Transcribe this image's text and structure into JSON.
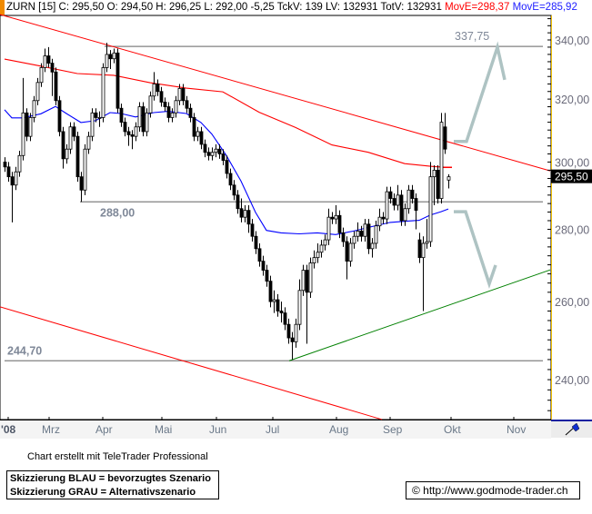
{
  "header": {
    "symbol_info": "ZURN [15] C: 295,50 O: 294,50 H: 296,25 L: 292,00 -5,25 TckV: 139 LV: 132931 TotV: 132931",
    "ma1_label": "MovE=298,37",
    "ma2_label": "MovE=285,92"
  },
  "colors": {
    "ma1": "#ff0000",
    "ma2": "#0000ff",
    "trend_red": "#ff0000",
    "trend_green": "#008000",
    "levels": "#808080",
    "scenario": "#aec3c3",
    "header_marker": "#f08a00"
  },
  "chart_data": {
    "type": "candlestick",
    "scale": "log",
    "ylim": [
      230.4,
      348.3
    ],
    "y_ticks": [
      "340,00",
      "320,00",
      "300,00",
      "280,00",
      "260,00",
      "240,00"
    ],
    "y_tick_values": [
      340,
      320,
      300,
      280,
      260,
      240
    ],
    "x_tick_labels": [
      "'08",
      "Mrz",
      "Apr",
      "Mai",
      "Jun",
      "Jul",
      "Aug",
      "Sep",
      "Okt",
      "Nov"
    ],
    "last_price_label": "295,50",
    "last_price": 295.5,
    "candles": [
      [
        300,
        301.5,
        297,
        298.5
      ],
      [
        298.5,
        300,
        294,
        295.5
      ],
      [
        295.5,
        297,
        282,
        293
      ],
      [
        293,
        298.5,
        291.5,
        297
      ],
      [
        297,
        303.5,
        295.5,
        302
      ],
      [
        302,
        327,
        300.5,
        315.5
      ],
      [
        315.5,
        317,
        306.5,
        308
      ],
      [
        308,
        315.5,
        306.5,
        314
      ],
      [
        314,
        321,
        312.5,
        319.5
      ],
      [
        319.5,
        327,
        318,
        325.5
      ],
      [
        325.5,
        332,
        324,
        330.5
      ],
      [
        330.5,
        337,
        329,
        334.5
      ],
      [
        334.5,
        337.5,
        330.5,
        332
      ],
      [
        332,
        333.5,
        321,
        329
      ],
      [
        329,
        330.5,
        318,
        319.5
      ],
      [
        319.5,
        321,
        308,
        309.5
      ],
      [
        309.5,
        311,
        298,
        301
      ],
      [
        301,
        305.5,
        299.5,
        304
      ],
      [
        304,
        312.5,
        302.5,
        311
      ],
      [
        311,
        312.5,
        306.5,
        308
      ],
      [
        308,
        309.5,
        294,
        295.5
      ],
      [
        295.5,
        297,
        288,
        291.5
      ],
      [
        291.5,
        305.5,
        290,
        304
      ],
      [
        304,
        309.5,
        302.5,
        308
      ],
      [
        308,
        317,
        306.5,
        315.5
      ],
      [
        315.5,
        317,
        312.5,
        314
      ],
      [
        314,
        316,
        311,
        314
      ],
      [
        314,
        332,
        312.5,
        330.5
      ],
      [
        330.5,
        339,
        329,
        335
      ],
      [
        335,
        336.5,
        330,
        333.5
      ],
      [
        333.5,
        337,
        332,
        335.5
      ],
      [
        335.5,
        337,
        315.5,
        317
      ],
      [
        317,
        318.5,
        311,
        312.5
      ],
      [
        312.5,
        314,
        308,
        309.5
      ],
      [
        309.5,
        311,
        305,
        308.5
      ],
      [
        308.5,
        310,
        304,
        308
      ],
      [
        308,
        312.5,
        306.5,
        311
      ],
      [
        311,
        319,
        309.5,
        317.5
      ],
      [
        317.5,
        319,
        308,
        309.5
      ],
      [
        309.5,
        317,
        308,
        315.5
      ],
      [
        315.5,
        322.5,
        314,
        321
      ],
      [
        321,
        329,
        319.5,
        325
      ],
      [
        325,
        326.5,
        321,
        322.5
      ],
      [
        322.5,
        324,
        317.5,
        319
      ],
      [
        319,
        320.5,
        316,
        317.5
      ],
      [
        317.5,
        319,
        312.5,
        314
      ],
      [
        314,
        317,
        312.5,
        315.5
      ],
      [
        315.5,
        321,
        314,
        319.5
      ],
      [
        319.5,
        325,
        318,
        323.5
      ],
      [
        323.5,
        325,
        318,
        319.5
      ],
      [
        319.5,
        321,
        315.5,
        317
      ],
      [
        317,
        318.5,
        312.5,
        314
      ],
      [
        314,
        315.5,
        306.5,
        308
      ],
      [
        308,
        311,
        306.5,
        309.5
      ],
      [
        309.5,
        311,
        304,
        305.5
      ],
      [
        305.5,
        307,
        301.5,
        303
      ],
      [
        303,
        304.5,
        300.5,
        302
      ],
      [
        302,
        304.5,
        300.5,
        303
      ],
      [
        303,
        305.5,
        301.5,
        304
      ],
      [
        304,
        305.5,
        301,
        302.5
      ],
      [
        302.5,
        304,
        299,
        300.5
      ],
      [
        300.5,
        302,
        295,
        296.5
      ],
      [
        296.5,
        298,
        291.5,
        293
      ],
      [
        293,
        294.5,
        288.5,
        290
      ],
      [
        290,
        291.5,
        284.5,
        286
      ],
      [
        286,
        289,
        282,
        283.5
      ],
      [
        283.5,
        287,
        282,
        285.5
      ],
      [
        285.5,
        287,
        279,
        281.5
      ],
      [
        281.5,
        283,
        276.5,
        278
      ],
      [
        278,
        279.5,
        273,
        274.5
      ],
      [
        274.5,
        276,
        269.5,
        271
      ],
      [
        271,
        272.5,
        267,
        268.5
      ],
      [
        268.5,
        270,
        264,
        265.5
      ],
      [
        265.5,
        267,
        258.5,
        260
      ],
      [
        260,
        263,
        257,
        260.5
      ],
      [
        260.5,
        262,
        256,
        257.5
      ],
      [
        257.5,
        260,
        254.5,
        257
      ],
      [
        257,
        258.5,
        252.5,
        254
      ],
      [
        254,
        255.5,
        249,
        250.5
      ],
      [
        250.5,
        252,
        245,
        249.5
      ],
      [
        249.5,
        255.5,
        248,
        254
      ],
      [
        254,
        266,
        252.5,
        263
      ],
      [
        263,
        270,
        261.5,
        268.5
      ],
      [
        268.5,
        270,
        249,
        262.5
      ],
      [
        262.5,
        272,
        261,
        270.5
      ],
      [
        270.5,
        274,
        269,
        272
      ],
      [
        272,
        276,
        270.5,
        273.5
      ],
      [
        273.5,
        277,
        272,
        275.5
      ],
      [
        275.5,
        278.5,
        274,
        277
      ],
      [
        277,
        286,
        275.5,
        283.5
      ],
      [
        283.5,
        285,
        281.5,
        283
      ],
      [
        283,
        287,
        281.5,
        284
      ],
      [
        284,
        285.5,
        277.5,
        279
      ],
      [
        279,
        280.5,
        275,
        276.5
      ],
      [
        276.5,
        278,
        266,
        271
      ],
      [
        271,
        277.5,
        269.5,
        276
      ],
      [
        276,
        279.5,
        274.5,
        278
      ],
      [
        278,
        282,
        276.5,
        279.5
      ],
      [
        279.5,
        281,
        276.5,
        278
      ],
      [
        278,
        283,
        276.5,
        281.5
      ],
      [
        281.5,
        283,
        273,
        274.5
      ],
      [
        274.5,
        277.5,
        272,
        276
      ],
      [
        276,
        282.5,
        274.5,
        281
      ],
      [
        281,
        286,
        279.5,
        283.5
      ],
      [
        283.5,
        285,
        281.5,
        283
      ],
      [
        283,
        292.5,
        281.5,
        291
      ],
      [
        291,
        292.5,
        287.5,
        289
      ],
      [
        289,
        290.5,
        285.5,
        287
      ],
      [
        287,
        293,
        285.5,
        290
      ],
      [
        290,
        291.5,
        281,
        282.5
      ],
      [
        282.5,
        287.5,
        281,
        286
      ],
      [
        286,
        293,
        284.5,
        291.5
      ],
      [
        291.5,
        293,
        287.5,
        289
      ],
      [
        289,
        290.5,
        280,
        285.5
      ],
      [
        277,
        279,
        270.5,
        272
      ],
      [
        272,
        278,
        257.5,
        276
      ],
      [
        276,
        283,
        274.5,
        276.5
      ],
      [
        276.5,
        300,
        275,
        295.5
      ],
      [
        295.5,
        299,
        287,
        297.5
      ],
      [
        297.5,
        299,
        287.5,
        289
      ],
      [
        289,
        315.5,
        287.5,
        312.5
      ],
      [
        311,
        315.5,
        302.5,
        304
      ],
      [
        294.5,
        296.25,
        292,
        295.5
      ]
    ],
    "moving_averages": [
      {
        "name": "MovE=298,37",
        "color": "#ff0000",
        "points": [
          [
            0,
            333.4
          ],
          [
            10,
            331
          ],
          [
            20,
            328.5
          ],
          [
            30,
            327.9
          ],
          [
            40,
            325.4
          ],
          [
            50,
            323.6
          ],
          [
            60,
            322.4
          ],
          [
            70,
            315.7
          ],
          [
            80,
            310.8
          ],
          [
            90,
            305.3
          ],
          [
            100,
            303
          ],
          [
            110,
            299.5
          ],
          [
            118,
            298.6
          ],
          [
            122,
            298.37
          ]
        ]
      },
      {
        "name": "MovE=285,92",
        "color": "#0000ff",
        "points": [
          [
            0,
            316.5
          ],
          [
            2,
            313.9
          ],
          [
            5,
            313.9
          ],
          [
            10,
            315.2
          ],
          [
            14,
            317.6
          ],
          [
            17,
            315.3
          ],
          [
            21,
            312.4
          ],
          [
            25,
            313
          ],
          [
            29,
            315.6
          ],
          [
            32,
            315.3
          ],
          [
            36,
            314.2
          ],
          [
            41,
            315.6
          ],
          [
            45,
            316
          ],
          [
            50,
            315.3
          ],
          [
            54,
            312.4
          ],
          [
            57,
            308.7
          ],
          [
            61,
            302
          ],
          [
            65,
            294.2
          ],
          [
            69,
            284.9
          ],
          [
            72,
            279.7
          ],
          [
            76,
            279
          ],
          [
            81,
            278.7
          ],
          [
            86,
            279
          ],
          [
            91,
            278.5
          ],
          [
            96,
            279.5
          ],
          [
            101,
            280.8
          ],
          [
            106,
            282
          ],
          [
            110,
            282.3
          ],
          [
            114,
            282.6
          ],
          [
            117,
            284.1
          ],
          [
            120,
            285.1
          ],
          [
            122,
            285.92
          ]
        ]
      }
    ],
    "levels": [
      {
        "label": "337,75",
        "value": 337.75,
        "from_index": 27.5
      },
      {
        "label": "288,00",
        "value": 288.0,
        "from_index": 20.75
      },
      {
        "label": "244,70",
        "value": 244.7,
        "from_index": 0
      }
    ],
    "trendlines": [
      {
        "color": "#ff0000",
        "points": [
          [
            -1.25,
            349.0
          ],
          [
            150,
            297.3
          ]
        ]
      },
      {
        "color": "#ff0000",
        "points": [
          [
            -1.25,
            258.6
          ],
          [
            103.75,
            230.4
          ]
        ]
      },
      {
        "color": "#008000",
        "points": [
          [
            78.25,
            244.7
          ],
          [
            150,
            268.6
          ]
        ]
      }
    ],
    "scenarios": [
      {
        "color": "#aec3c3",
        "points": [
          [
            123.5,
            306.4
          ],
          [
            127,
            306.4
          ],
          [
            135.5,
            337.5
          ],
          [
            137.5,
            326.4
          ]
        ]
      },
      {
        "color": "#aec3c3",
        "points": [
          [
            123.5,
            285.1
          ],
          [
            126.75,
            285.1
          ],
          [
            133.25,
            264.8
          ],
          [
            135,
            269.9
          ]
        ]
      }
    ]
  },
  "footer": {
    "credit": "Chart erstellt mit TeleTrader Professional",
    "legend_blue": "Skizzierung BLAU = bevorzugtes Szenario",
    "legend_grey": "Skizzierung GRAU = Alternativszenario",
    "url": "© http://www.godmode-trader.ch"
  },
  "toolbar": {
    "draw_tool_icon": "pen-icon"
  }
}
